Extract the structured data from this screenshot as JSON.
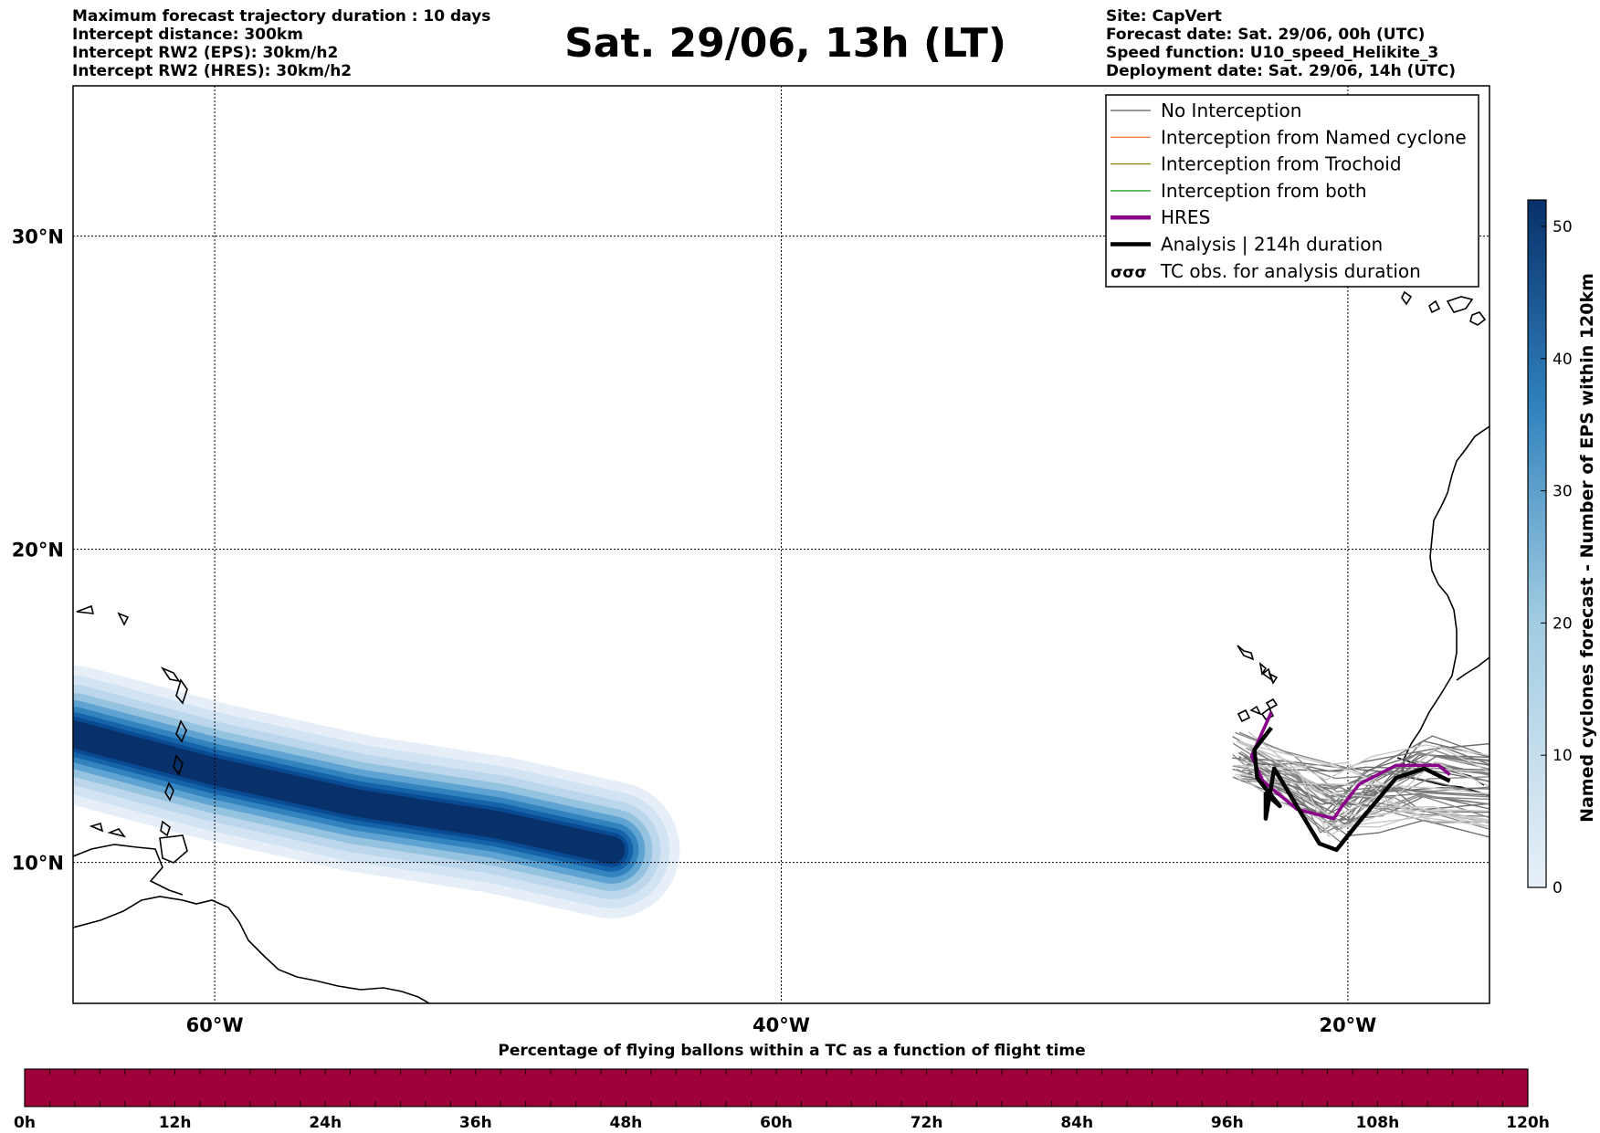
{
  "title": "Sat. 29/06, 13h (LT)",
  "info_left": [
    "Maximum forecast trajectory duration : 10 days",
    "Intercept distance: 300km",
    "Intercept RW2 (EPS):  30km/h2",
    "Intercept RW2 (HRES): 30km/h2"
  ],
  "info_right": [
    "Site: CapVert",
    "Forecast date: Sat. 29/06, 00h (UTC)",
    "Speed function: U10_speed_Helikite_3",
    "Deployment date: Sat. 29/06, 14h (UTC)"
  ],
  "map": {
    "lon_range": [
      -65,
      -15
    ],
    "lat_range": [
      5.5,
      34.8
    ],
    "lon_ticks": [
      {
        "value": -60,
        "label": "60°W"
      },
      {
        "value": -40,
        "label": "40°W"
      },
      {
        "value": -20,
        "label": "20°W"
      }
    ],
    "lat_ticks": [
      {
        "value": 30,
        "label": "30°N"
      },
      {
        "value": 20,
        "label": "20°N"
      },
      {
        "value": 10,
        "label": "10°N"
      }
    ],
    "gridlines": true,
    "eps_density_track": [
      {
        "lon": -65,
        "lat": 14.1
      },
      {
        "lon": -60,
        "lat": 12.9
      },
      {
        "lon": -55,
        "lat": 11.9
      },
      {
        "lon": -50,
        "lat": 11.2
      },
      {
        "lon": -46,
        "lat": 10.4
      }
    ],
    "hres_track": [
      {
        "lon": -22.7,
        "lat": 14.8
      },
      {
        "lon": -23.4,
        "lat": 13.4
      },
      {
        "lon": -23.0,
        "lat": 12.6
      },
      {
        "lon": -21.8,
        "lat": 11.7
      },
      {
        "lon": -20.5,
        "lat": 11.4
      },
      {
        "lon": -20.2,
        "lat": 11.8
      },
      {
        "lon": -19.6,
        "lat": 12.5
      },
      {
        "lon": -18.3,
        "lat": 13.1
      },
      {
        "lon": -16.8,
        "lat": 13.1
      },
      {
        "lon": -16.4,
        "lat": 12.8
      }
    ],
    "analysis_track": [
      {
        "lon": -22.7,
        "lat": 14.3
      },
      {
        "lon": -23.3,
        "lat": 13.6
      },
      {
        "lon": -23.2,
        "lat": 12.7
      },
      {
        "lon": -22.4,
        "lat": 11.8
      },
      {
        "lon": -22.9,
        "lat": 12.2
      },
      {
        "lon": -22.9,
        "lat": 11.4
      },
      {
        "lon": -22.6,
        "lat": 13.0
      },
      {
        "lon": -21.0,
        "lat": 10.6
      },
      {
        "lon": -20.4,
        "lat": 10.4
      },
      {
        "lon": -19.6,
        "lat": 11.3
      },
      {
        "lon": -18.3,
        "lat": 12.7
      },
      {
        "lon": -17.3,
        "lat": 13.0
      },
      {
        "lon": -16.4,
        "lat": 12.6
      }
    ]
  },
  "legend": [
    {
      "label": "No Interception",
      "color": "#777777",
      "style": "line-thin"
    },
    {
      "label": "Interception from Named cyclone",
      "color": "#ff7f50",
      "style": "line-thin"
    },
    {
      "label": "Interception from Trochoid",
      "color": "#8b8b00",
      "style": "line-thin"
    },
    {
      "label": "Interception from both",
      "color": "#2ca02c",
      "style": "line-thin"
    },
    {
      "label": "HRES",
      "color": "#8b008b",
      "style": "line-thick"
    },
    {
      "label": "Analysis | 214h duration",
      "color": "#000000",
      "style": "line-thick"
    },
    {
      "label": "TC obs. for analysis duration",
      "color": "#000000",
      "style": "symbol"
    }
  ],
  "colorbar": {
    "title": "Named cyclones forecast - Number of EPS within 120km",
    "min": 0,
    "max": 52,
    "ticks": [
      0,
      10,
      20,
      30,
      40,
      50
    ],
    "color_low": "#e8f0f8",
    "color_high": "#08306b"
  },
  "bottom_bar": {
    "title": "Percentage of flying ballons within a TC as a function of flight time",
    "ticks": [
      "0h",
      "12h",
      "24h",
      "36h",
      "48h",
      "60h",
      "72h",
      "84h",
      "96h",
      "108h",
      "120h"
    ],
    "fill_color": "#9e003a",
    "percent_all_times": 100
  }
}
